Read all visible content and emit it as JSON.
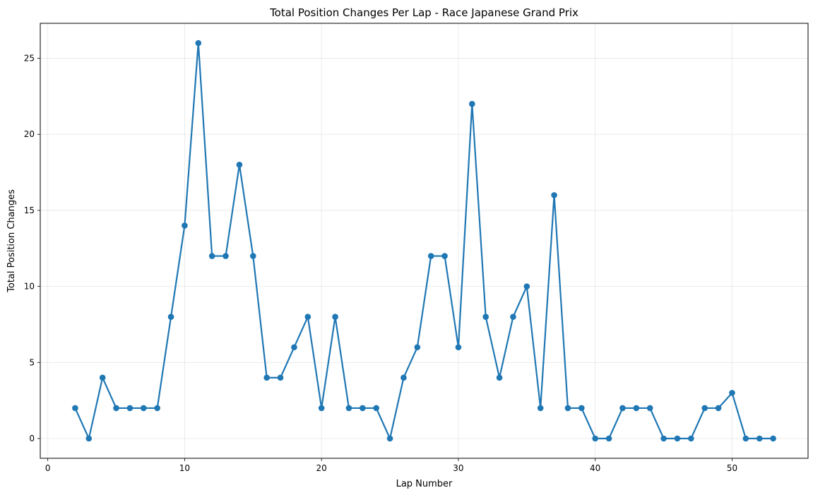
{
  "chart_data": {
    "type": "line",
    "title": "Total Position Changes Per Lap - Race Japanese Grand Prix",
    "xlabel": "Lap Number",
    "ylabel": "Total Position Changes",
    "xlim": [
      -0.55,
      55.55
    ],
    "ylim": [
      -1.3,
      27.3
    ],
    "xticks": [
      0,
      10,
      20,
      30,
      40,
      50
    ],
    "yticks": [
      0,
      5,
      10,
      15,
      20,
      25
    ],
    "grid": true,
    "series": [
      {
        "name": "Total Position Changes",
        "color": "#1f77b4",
        "x": [
          2,
          3,
          4,
          5,
          6,
          7,
          8,
          9,
          10,
          11,
          12,
          13,
          14,
          15,
          16,
          17,
          18,
          19,
          20,
          21,
          22,
          23,
          24,
          25,
          26,
          27,
          28,
          29,
          30,
          31,
          32,
          33,
          34,
          35,
          36,
          37,
          38,
          39,
          40,
          41,
          42,
          43,
          44,
          45,
          46,
          47,
          48,
          49,
          50,
          51,
          52,
          53
        ],
        "y": [
          2,
          0,
          4,
          2,
          2,
          2,
          2,
          8,
          14,
          26,
          12,
          12,
          18,
          12,
          4,
          4,
          6,
          8,
          2,
          8,
          2,
          2,
          2,
          0,
          4,
          6,
          12,
          12,
          6,
          22,
          8,
          4,
          8,
          10,
          2,
          16,
          2,
          2,
          0,
          0,
          2,
          2,
          2,
          0,
          0,
          0,
          2,
          2,
          3,
          0,
          0,
          0
        ]
      }
    ]
  }
}
